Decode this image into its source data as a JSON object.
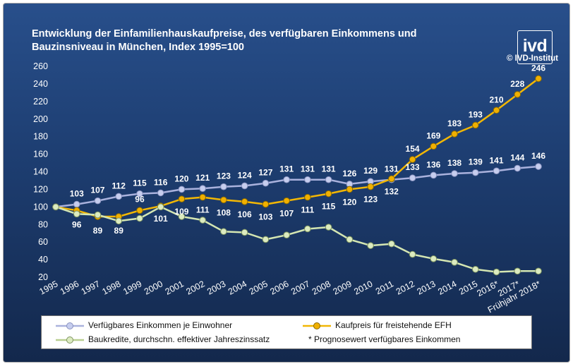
{
  "header": {
    "title_line1": "Entwicklung der Einfamilienhauskaufpreise, des verfügbaren Einkommens und",
    "title_line2": "Bauzinsniveau in München, Index 1995=100",
    "logo_text": "ivd",
    "copyright": "© IVD-Institut"
  },
  "chart_data": {
    "type": "line",
    "categories": [
      "1995",
      "1996",
      "1997",
      "1998",
      "1999",
      "2000",
      "2001",
      "2002",
      "2003",
      "2004",
      "2005",
      "2006",
      "2007",
      "2008",
      "2009",
      "2010",
      "2011",
      "2012",
      "2013",
      "2014",
      "2015",
      "2016*",
      "2017*",
      "Frühjahr 2018*"
    ],
    "ylim": [
      20,
      260
    ],
    "yticks": [
      20,
      40,
      60,
      80,
      100,
      120,
      140,
      160,
      180,
      200,
      220,
      240,
      260
    ],
    "series": [
      {
        "name": "Verfügbares Einkommen je Einwohner",
        "color": "#aab2dd",
        "marker": "#c6cdee",
        "values": [
          100,
          103,
          107,
          112,
          115,
          116,
          120,
          121,
          123,
          124,
          127,
          131,
          131,
          131,
          126,
          129,
          131,
          133,
          136,
          138,
          139,
          141,
          144,
          146
        ],
        "labels": [
          null,
          "103",
          "107",
          "112",
          "115",
          "116",
          "120",
          "121",
          "123",
          "124",
          "127",
          "131",
          "131",
          "131",
          "126",
          "129",
          "131",
          "133",
          "136",
          "138",
          "139",
          "141",
          "144",
          "146"
        ]
      },
      {
        "name": "Kaufpreis für freistehende EFH",
        "color": "#f2b705",
        "marker": "#f0b000",
        "values": [
          100,
          96,
          89,
          89,
          96,
          101,
          109,
          111,
          108,
          106,
          103,
          107,
          111,
          115,
          120,
          123,
          132,
          154,
          169,
          183,
          193,
          210,
          228,
          246
        ],
        "labels": [
          null,
          "96",
          "89",
          "89",
          "96",
          "101",
          "109",
          "111",
          "108",
          "106",
          "103",
          "107",
          "111",
          "115",
          "120",
          "123",
          "132",
          "154",
          "169",
          "183",
          "193",
          "210",
          "228",
          "246"
        ]
      },
      {
        "name": "Baukredite, durchschn. effektiver Jahreszinssatz",
        "color": "#d4e6b2",
        "marker": "#dcebc0",
        "values": [
          100,
          92,
          91,
          84,
          87,
          100,
          89,
          85,
          72,
          71,
          63,
          68,
          75,
          77,
          63,
          56,
          58,
          46,
          41,
          37,
          29,
          26,
          27,
          27
        ],
        "labels": []
      }
    ],
    "note": "* Prognosewert verfügbares Einkommen"
  },
  "legend": {
    "item1": "Verfügbares Einkommen je Einwohner",
    "item2": "Kaufpreis für freistehende EFH",
    "item3": "Baukredite, durchschn. effektiver Jahreszinssatz",
    "note": "* Prognosewert verfügbares Einkommen"
  }
}
